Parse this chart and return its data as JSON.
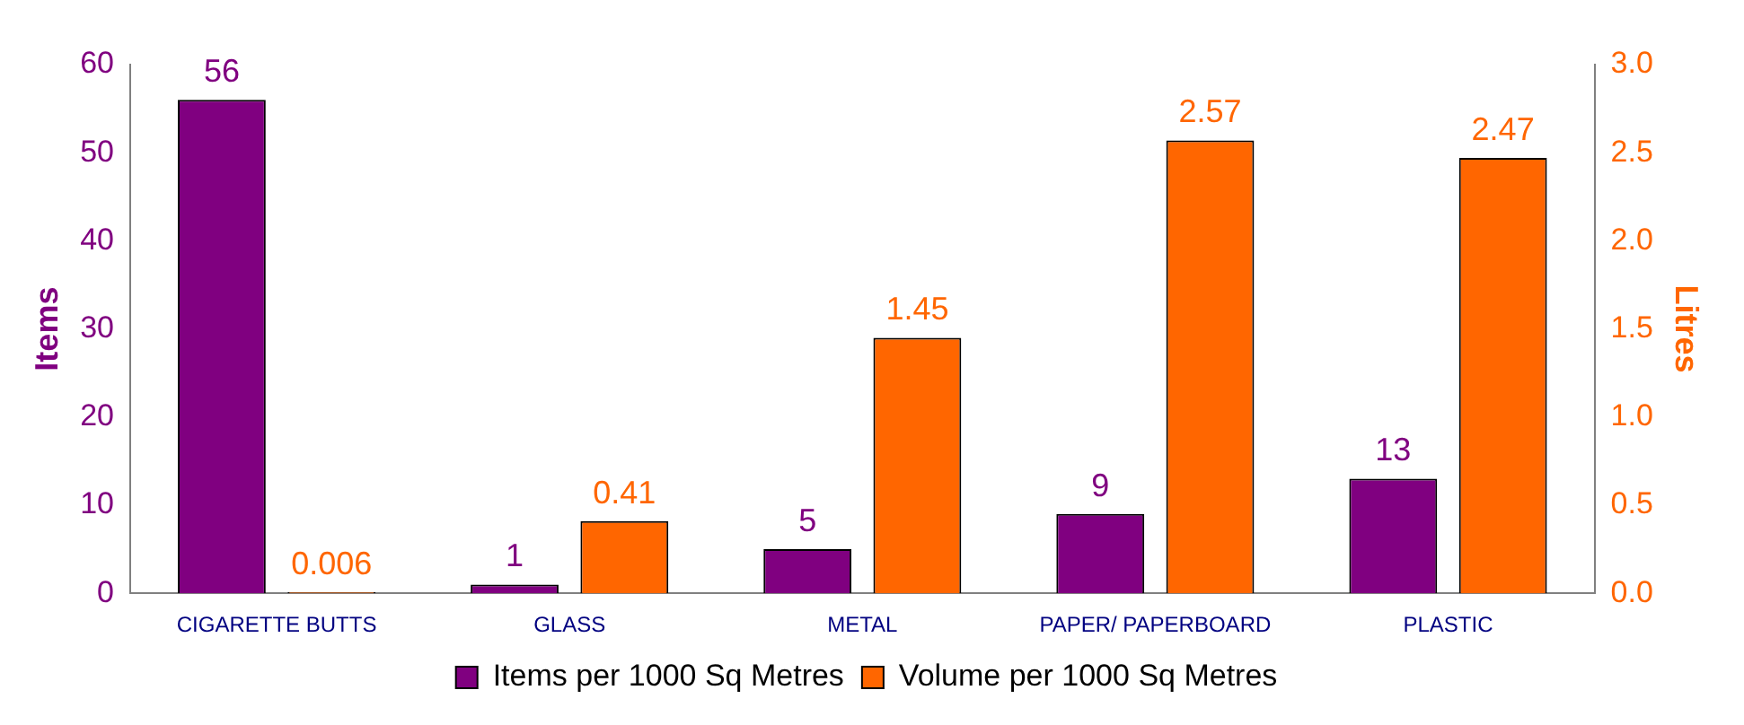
{
  "chart_data": {
    "type": "bar",
    "categories": [
      "CIGARETTE BUTTS",
      "GLASS",
      "METAL",
      "PAPER/ PAPERBOARD",
      "PLASTIC"
    ],
    "series": [
      {
        "name": "Items per 1000 Sq Metres",
        "color": "#800080",
        "values": [
          56,
          1,
          5,
          9,
          13
        ]
      },
      {
        "name": "Volume per 1000 Sq Metres",
        "color": "#ff6600",
        "values": [
          0.006,
          0.41,
          1.45,
          2.57,
          2.47
        ],
        "axis": "y2"
      }
    ],
    "ylabel": "Items",
    "y2label": "Litres",
    "ylim": [
      0,
      60
    ],
    "yticks": [
      0,
      10,
      20,
      30,
      40,
      50,
      60
    ],
    "y2lim": [
      0,
      3
    ],
    "y2ticks": [
      {
        "value": 0,
        "label": "0.0"
      },
      {
        "value": 0.5,
        "label": "0.5"
      },
      {
        "value": 1,
        "label": "1.0"
      },
      {
        "value": 1.5,
        "label": "1.5"
      },
      {
        "value": 2,
        "label": "2.0"
      },
      {
        "value": 2.5,
        "label": "2.5"
      },
      {
        "value": 3,
        "label": "3.0"
      }
    ],
    "data_labels": true,
    "grid": false,
    "legend": "bottom"
  }
}
